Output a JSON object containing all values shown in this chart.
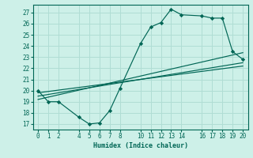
{
  "xlabel": "Humidex (Indice chaleur)",
  "bg_color": "#cdf0e8",
  "grid_color": "#aaddcc",
  "line_color": "#006655",
  "xlim": [
    -0.5,
    20.5
  ],
  "ylim": [
    16.5,
    27.7
  ],
  "xticks": [
    0,
    1,
    2,
    4,
    5,
    6,
    7,
    8,
    10,
    11,
    12,
    13,
    14,
    16,
    17,
    18,
    19,
    20
  ],
  "yticks": [
    17,
    18,
    19,
    20,
    21,
    22,
    23,
    24,
    25,
    26,
    27
  ],
  "main_line": {
    "x": [
      0,
      1,
      2,
      4,
      5,
      6,
      7,
      8,
      10,
      11,
      12,
      13,
      14,
      16,
      17,
      18,
      19,
      20
    ],
    "y": [
      20,
      19,
      19,
      17.6,
      17,
      17.1,
      18.2,
      20.2,
      24.2,
      25.7,
      26.1,
      27.3,
      26.8,
      26.7,
      26.5,
      26.5,
      23.5,
      22.8
    ]
  },
  "trend_lines": [
    {
      "x": [
        0,
        20
      ],
      "y": [
        19.2,
        23.4
      ]
    },
    {
      "x": [
        0,
        20
      ],
      "y": [
        19.5,
        22.5
      ]
    },
    {
      "x": [
        0,
        20
      ],
      "y": [
        19.8,
        22.2
      ]
    }
  ]
}
